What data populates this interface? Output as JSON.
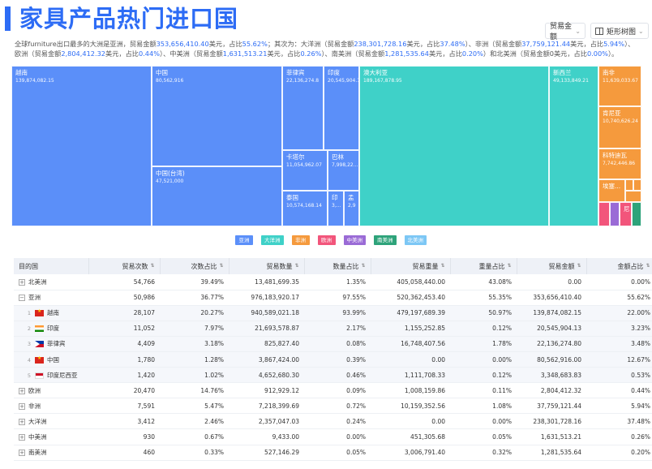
{
  "header": {
    "title": "家具产品热门进口国",
    "metric_select": "贸易金额",
    "view_select": "矩形树图"
  },
  "summary": {
    "p1": "全球furniture出口最多的大洲是亚洲，贸易金额",
    "v1": "353,656,410.40",
    "p2": "美元，占比",
    "v2": "55.62%",
    "p3": "；其次为：大洋洲（贸易金额",
    "v3": "238,301,728.16",
    "p4": "美元，占比",
    "v4": "37.48%",
    "p5": "）、非洲（贸易金额",
    "v5": "37,759,121.44",
    "p6": "美元，占比",
    "v6": "5.94%",
    "p7": "）、欧洲（贸易金额",
    "v7": "2,804,412.32",
    "p8": "美元，占比",
    "v8": "0.44%",
    "p9": "）、中美洲（贸易金额",
    "v9": "1,631,513.21",
    "p10": "美元，占比",
    "v10": "0.26%",
    "p11": "）、南美洲（贸易金额",
    "v11": "1,281,535.64",
    "p12": "美元，占比",
    "v12": "0.20%",
    "p13": "）和北美洲（贸易金额0美元，占比",
    "v13": "0.00%",
    "p14": "）。"
  },
  "treemap": {
    "tiles": [
      {
        "name": "越南",
        "value": "139,874,082.15",
        "continent": "亚洲"
      },
      {
        "name": "中国",
        "value": "80,562,916",
        "continent": "亚洲"
      },
      {
        "name": "中国(台湾)",
        "value": "47,521,000",
        "continent": "亚洲"
      },
      {
        "name": "菲律宾",
        "value": "22,136,274.8",
        "continent": "亚洲"
      },
      {
        "name": "印度",
        "value": "20,545,904.13",
        "continent": "亚洲"
      },
      {
        "name": "卡塔尔",
        "value": "11,054,962.07",
        "continent": "亚洲"
      },
      {
        "name": "巴林",
        "value": "7,998,22...",
        "continent": "亚洲"
      },
      {
        "name": "泰国",
        "value": "10,574,168.14",
        "continent": "亚洲"
      },
      {
        "name": "印",
        "value": "3,...",
        "continent": "亚洲"
      },
      {
        "name": "孟",
        "value": "2,9",
        "continent": "亚洲"
      },
      {
        "name": "澳大利亚",
        "value": "189,167,878.95",
        "continent": "大洋洲"
      },
      {
        "name": "新西兰",
        "value": "49,133,849.21",
        "continent": "大洋洲"
      },
      {
        "name": "南非",
        "value": "11,639,033.67",
        "continent": "非洲"
      },
      {
        "name": "肯尼亚",
        "value": "10,740,626.24",
        "continent": "非洲"
      },
      {
        "name": "科特迪瓦",
        "value": "7,742,446.86",
        "continent": "非洲"
      },
      {
        "name": "埃塞...",
        "value": "",
        "continent": "非洲"
      },
      {
        "name": "尼",
        "value": "",
        "continent": "欧洲"
      }
    ]
  },
  "legend": [
    "亚洲",
    "大洋洲",
    "非洲",
    "欧洲",
    "中美洲",
    "南美洲",
    "北美洲"
  ],
  "colors": {
    "亚洲": "#5b8ff9",
    "大洋洲": "#3fd1c8",
    "非洲": "#f59a3d",
    "欧洲": "#f2557b",
    "中美洲": "#9a6bd6",
    "南美洲": "#2ea37a",
    "北美洲": "#7cc7f5"
  },
  "table": {
    "columns": [
      "目的国",
      "贸易次数",
      "次数占比",
      "贸易数量",
      "数量占比",
      "贸易重量",
      "重量占比",
      "贸易金额",
      "金额占比"
    ],
    "rows": [
      {
        "name": "北美洲",
        "cells": [
          "54,766",
          "39.49%",
          "13,481,699.35",
          "1.35%",
          "405,058,440.00",
          "43.08%",
          "0.00",
          "0.00%"
        ]
      },
      {
        "name": "亚洲",
        "cells": [
          "50,986",
          "36.77%",
          "976,183,920.17",
          "97.55%",
          "520,362,453.40",
          "55.35%",
          "353,656,410.40",
          "55.62%"
        ]
      },
      {
        "name": "越南",
        "rank": "1",
        "cells": [
          "28,107",
          "20.27%",
          "940,589,021.18",
          "93.99%",
          "479,197,689.39",
          "50.97%",
          "139,874,082.15",
          "22.00%"
        ]
      },
      {
        "name": "印度",
        "rank": "2",
        "cells": [
          "11,052",
          "7.97%",
          "21,693,578.87",
          "2.17%",
          "1,155,252.85",
          "0.12%",
          "20,545,904.13",
          "3.23%"
        ]
      },
      {
        "name": "菲律宾",
        "rank": "3",
        "cells": [
          "4,409",
          "3.18%",
          "825,827.40",
          "0.08%",
          "16,748,407.56",
          "1.78%",
          "22,136,274.80",
          "3.48%"
        ]
      },
      {
        "name": "中国",
        "rank": "4",
        "cells": [
          "1,780",
          "1.28%",
          "3,867,424.00",
          "0.39%",
          "0.00",
          "0.00%",
          "80,562,916.00",
          "12.67%"
        ]
      },
      {
        "name": "印度尼西亚",
        "rank": "5",
        "cells": [
          "1,420",
          "1.02%",
          "4,652,680.30",
          "0.46%",
          "1,111,708.33",
          "0.12%",
          "3,348,683.83",
          "0.53%"
        ]
      },
      {
        "name": "欧洲",
        "cells": [
          "20,470",
          "14.76%",
          "912,929.12",
          "0.09%",
          "1,008,159.86",
          "0.11%",
          "2,804,412.32",
          "0.44%"
        ]
      },
      {
        "name": "非洲",
        "cells": [
          "7,591",
          "5.47%",
          "7,218,399.69",
          "0.72%",
          "10,159,352.56",
          "1.08%",
          "37,759,121.44",
          "5.94%"
        ]
      },
      {
        "name": "大洋洲",
        "cells": [
          "3,412",
          "2.46%",
          "2,357,047.03",
          "0.24%",
          "0.00",
          "0.00%",
          "238,301,728.16",
          "37.48%"
        ]
      },
      {
        "name": "中美洲",
        "cells": [
          "930",
          "0.67%",
          "9,433.00",
          "0.00%",
          "451,305.68",
          "0.05%",
          "1,631,513.21",
          "0.26%"
        ]
      },
      {
        "name": "南美洲",
        "cells": [
          "460",
          "0.33%",
          "527,146.29",
          "0.05%",
          "3,006,791.40",
          "0.32%",
          "1,281,535.64",
          "0.20%"
        ]
      }
    ]
  }
}
